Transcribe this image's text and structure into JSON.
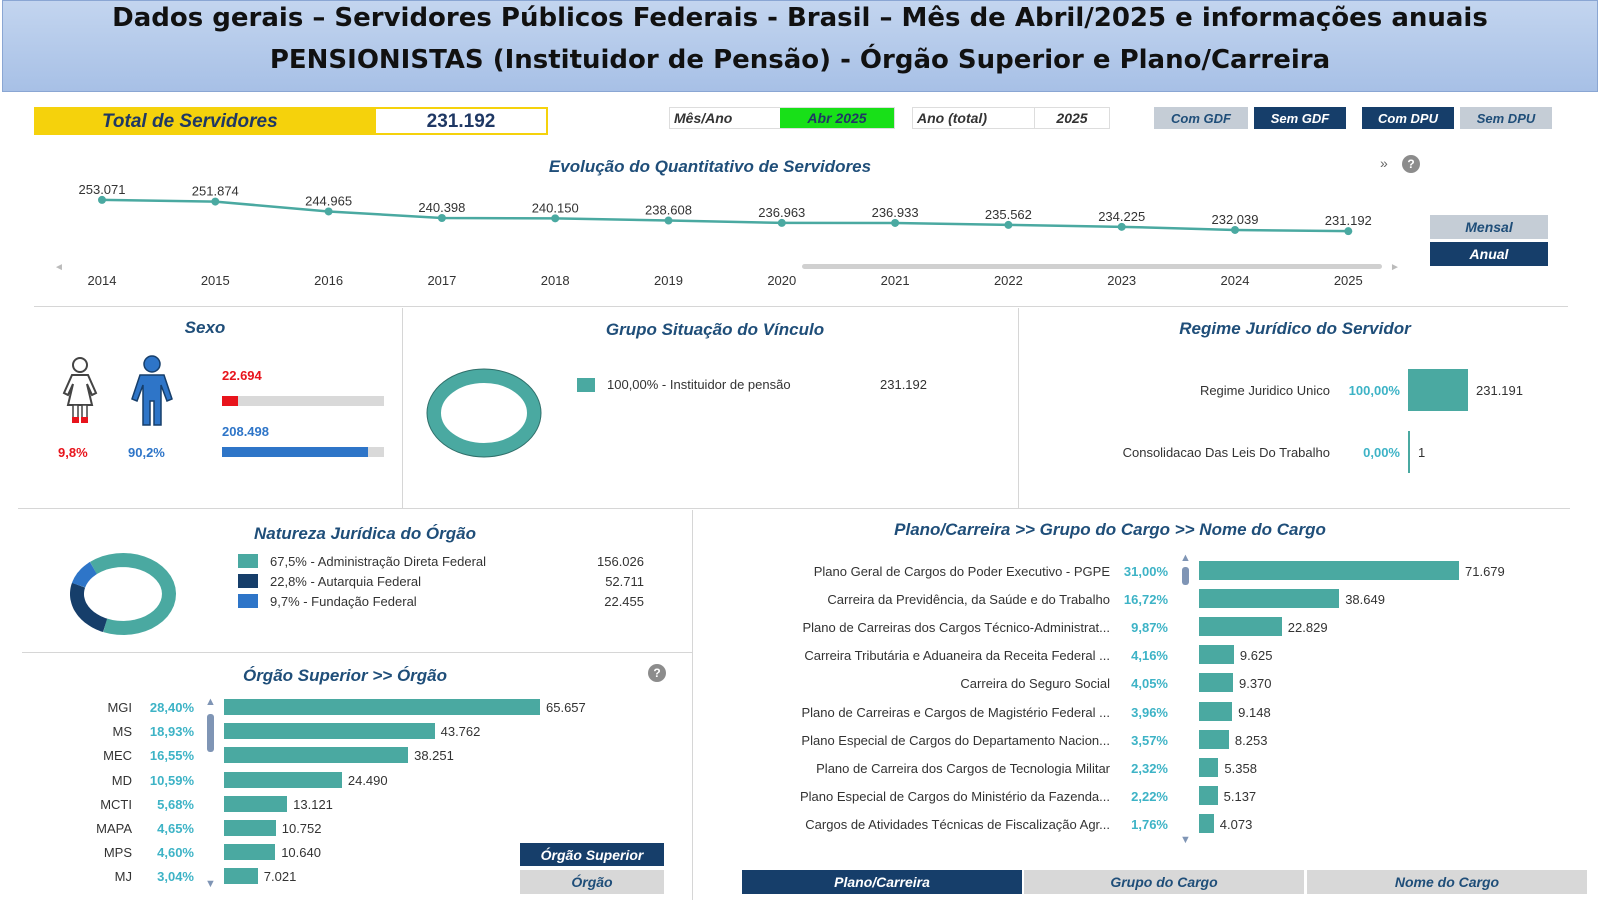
{
  "header": {
    "line1": "Dados gerais – Servidores Públicos Federais - Brasil – Mês de Abril/2025 e informações anuais",
    "line2": "PENSIONISTAS (Instituidor de Pensão) - Órgão Superior e Plano/Carreira"
  },
  "total": {
    "label": "Total de Servidores",
    "value": "231.192"
  },
  "filters": {
    "month_label": "Mês/Ano",
    "month_value": "Abr 2025",
    "year_label": "Ano (total)",
    "year_value": "2025"
  },
  "toggles": {
    "com_gdf": "Com GDF",
    "sem_gdf": "Sem GDF",
    "com_dpu": "Com DPU",
    "sem_dpu": "Sem DPU"
  },
  "evolution": {
    "title": "Evolução do Quantitativo de Servidores",
    "more": "»",
    "mensal": "Mensal",
    "anual": "Anual"
  },
  "sexo": {
    "title": "Sexo",
    "female_pct": "9,8%",
    "male_pct": "90,2%",
    "female_value": "22.694",
    "male_value": "208.498",
    "female_fraction": 0.098,
    "male_fraction": 0.902,
    "female_color": "#e8141c",
    "male_color": "#2e75c8"
  },
  "vinculo": {
    "title": "Grupo Situação do Vínculo",
    "legend": "100,00% - Instituidor de pensão",
    "value": "231.192"
  },
  "regime": {
    "title": "Regime Jurídico do Servidor",
    "rows": [
      {
        "label": "Regime Juridico Unico",
        "pct": "100,00%",
        "value": "231.191",
        "frac": 1.0
      },
      {
        "label": "Consolidacao Das Leis Do Trabalho",
        "pct": "0,00%",
        "value": "1",
        "frac": 0.0
      }
    ]
  },
  "natureza": {
    "title": "Natureza Jurídica do Órgão",
    "items": [
      {
        "label": "67,5% - Administração Direta Federal",
        "value": "156.026",
        "frac": 0.675,
        "color": "#4aa9a1"
      },
      {
        "label": "22,8% - Autarquia Federal",
        "value": "52.711",
        "frac": 0.228,
        "color": "#163e6a"
      },
      {
        "label": "9,7% - Fundação Federal",
        "value": "22.455",
        "frac": 0.097,
        "color": "#2e75c8"
      }
    ]
  },
  "orgao": {
    "title": "Órgão Superior >> Órgão",
    "help": "?",
    "btn_superior": "Órgão Superior",
    "btn_orgao": "Órgão",
    "rows": [
      {
        "label": "MGI",
        "pct": "28,40%",
        "value": "65.657",
        "num": 65657
      },
      {
        "label": "MS",
        "pct": "18,93%",
        "value": "43.762",
        "num": 43762
      },
      {
        "label": "MEC",
        "pct": "16,55%",
        "value": "38.251",
        "num": 38251
      },
      {
        "label": "MD",
        "pct": "10,59%",
        "value": "24.490",
        "num": 24490
      },
      {
        "label": "MCTI",
        "pct": "5,68%",
        "value": "13.121",
        "num": 13121
      },
      {
        "label": "MAPA",
        "pct": "4,65%",
        "value": "10.752",
        "num": 10752
      },
      {
        "label": "MPS",
        "pct": "4,60%",
        "value": "10.640",
        "num": 10640
      },
      {
        "label": "MJ",
        "pct": "3,04%",
        "value": "7.021",
        "num": 7021
      }
    ]
  },
  "plano": {
    "title": "Plano/Carreira >> Grupo do Cargo >> Nome do Cargo",
    "btn_plano": "Plano/Carreira",
    "btn_grupo": "Grupo do Cargo",
    "btn_nome": "Nome do Cargo",
    "rows": [
      {
        "label": "Plano Geral de Cargos do Poder Executivo - PGPE",
        "pct": "31,00%",
        "value": "71.679",
        "num": 71679
      },
      {
        "label": "Carreira da Previdência, da Saúde e do Trabalho",
        "pct": "16,72%",
        "value": "38.649",
        "num": 38649
      },
      {
        "label": "Plano de Carreiras dos Cargos Técnico-Administrat...",
        "pct": "9,87%",
        "value": "22.829",
        "num": 22829
      },
      {
        "label": "Carreira Tributária e Aduaneira da Receita Federal ...",
        "pct": "4,16%",
        "value": "9.625",
        "num": 9625
      },
      {
        "label": "Carreira do Seguro Social",
        "pct": "4,05%",
        "value": "9.370",
        "num": 9370
      },
      {
        "label": "Plano de Carreiras e Cargos de Magistério Federal ...",
        "pct": "3,96%",
        "value": "9.148",
        "num": 9148
      },
      {
        "label": "Plano Especial de Cargos do Departamento Nacion...",
        "pct": "3,57%",
        "value": "8.253",
        "num": 8253
      },
      {
        "label": "Plano de Carreira dos Cargos de Tecnologia Militar",
        "pct": "2,32%",
        "value": "5.358",
        "num": 5358
      },
      {
        "label": "Plano Especial de Cargos do Ministério da Fazenda...",
        "pct": "2,22%",
        "value": "5.137",
        "num": 5137
      },
      {
        "label": "Cargos de Atividades Técnicas de Fiscalização Agr...",
        "pct": "1,76%",
        "value": "4.073",
        "num": 4073
      }
    ]
  },
  "chart_data": {
    "type": "line",
    "title": "Evolução do Quantitativo de Servidores",
    "x": [
      "2014",
      "2015",
      "2016",
      "2017",
      "2018",
      "2019",
      "2020",
      "2021",
      "2022",
      "2023",
      "2024",
      "2025"
    ],
    "values": [
      253071,
      251874,
      244965,
      240398,
      240150,
      238608,
      236963,
      236933,
      235562,
      234225,
      232039,
      231192
    ],
    "labels": [
      "253.071",
      "251.874",
      "244.965",
      "240.398",
      "240.150",
      "238.608",
      "236.963",
      "236.933",
      "235.562",
      "234.225",
      "232.039",
      "231.192"
    ],
    "color": "#4aa9a1"
  }
}
